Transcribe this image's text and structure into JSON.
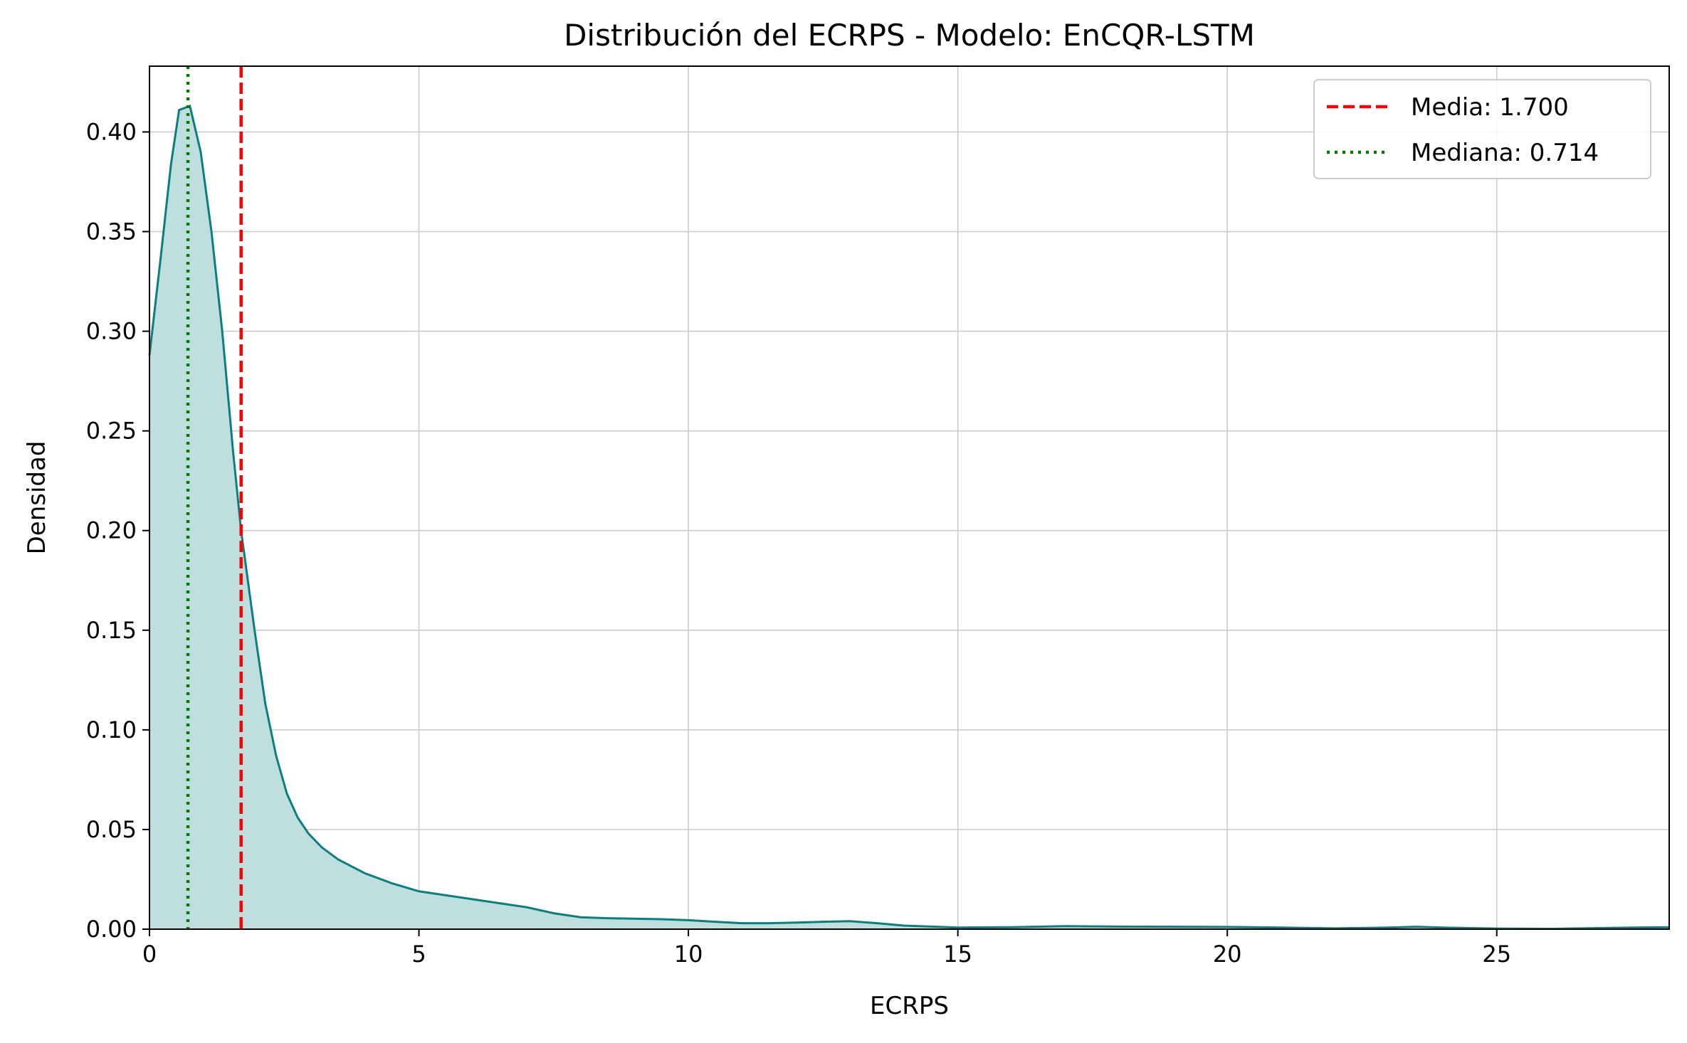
{
  "chart_data": {
    "type": "area",
    "title": "Distribución del ECRPS - Modelo: EnCQR-LSTM",
    "xlabel": "ECRPS",
    "ylabel": "Densidad",
    "xlim": [
      0,
      28.2
    ],
    "ylim": [
      0,
      0.433
    ],
    "xticks": [
      0,
      5,
      10,
      15,
      20,
      25
    ],
    "yticks": [
      0.0,
      0.05,
      0.1,
      0.15,
      0.2,
      0.25,
      0.3,
      0.35,
      0.4
    ],
    "xtick_labels": [
      "0",
      "5",
      "10",
      "15",
      "20",
      "25"
    ],
    "ytick_labels": [
      "0.00",
      "0.05",
      "0.10",
      "0.15",
      "0.20",
      "0.25",
      "0.30",
      "0.35",
      "0.40"
    ],
    "grid": true,
    "legend_position": "top-right",
    "colors": {
      "density_line": "#0a7f7f",
      "density_fill": "#bfdfdf",
      "mean_line": "#ff0000",
      "median_line": "#007a00",
      "grid": "#cccccc"
    },
    "series": [
      {
        "name": "",
        "x": [
          0.0,
          0.2,
          0.4,
          0.55,
          0.75,
          0.95,
          1.15,
          1.35,
          1.55,
          1.7,
          1.8,
          1.95,
          2.15,
          2.35,
          2.55,
          2.75,
          2.95,
          3.2,
          3.5,
          4.0,
          4.5,
          5.0,
          5.5,
          6.0,
          6.5,
          7.0,
          7.5,
          8.0,
          8.5,
          9.5,
          10.0,
          10.5,
          11.0,
          11.5,
          12.0,
          12.5,
          13.0,
          13.5,
          14.0,
          15.0,
          16.0,
          17.0,
          18.0,
          19.0,
          20.0,
          21.0,
          22.0,
          23.0,
          23.5,
          24.0,
          25.0,
          26.0,
          27.0,
          28.2
        ],
        "y": [
          0.288,
          0.335,
          0.384,
          0.411,
          0.413,
          0.39,
          0.35,
          0.3,
          0.24,
          0.2,
          0.18,
          0.15,
          0.113,
          0.087,
          0.068,
          0.056,
          0.048,
          0.041,
          0.035,
          0.028,
          0.023,
          0.019,
          0.017,
          0.015,
          0.013,
          0.011,
          0.008,
          0.006,
          0.0055,
          0.005,
          0.0045,
          0.0037,
          0.003,
          0.003,
          0.0033,
          0.0037,
          0.004,
          0.003,
          0.0018,
          0.0008,
          0.001,
          0.0015,
          0.0013,
          0.0012,
          0.0011,
          0.0008,
          0.0004,
          0.0008,
          0.0012,
          0.0008,
          0.0003,
          0.0002,
          0.0006,
          0.001
        ]
      }
    ],
    "reference_lines": [
      {
        "name": "Media: 1.700",
        "x": 1.7,
        "style": "dashed",
        "color": "#ff0000"
      },
      {
        "name": "Mediana: 0.714",
        "x": 0.714,
        "style": "dotted",
        "color": "#007a00"
      }
    ]
  }
}
